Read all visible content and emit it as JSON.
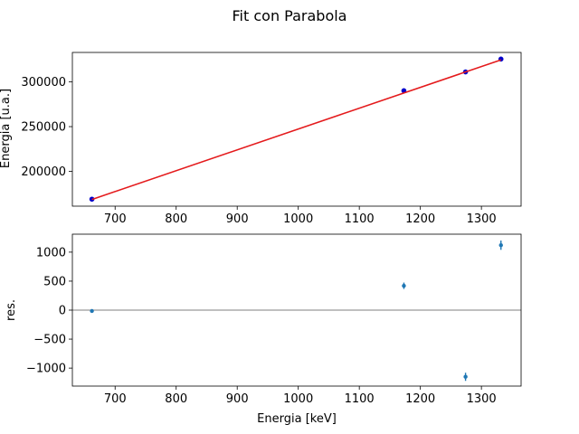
{
  "chart_data": [
    {
      "type": "line",
      "title": "Fit con Parabola",
      "xlabel": "",
      "ylabel": "Energia [u.a.]",
      "xlim": [
        630,
        1365
      ],
      "ylim": [
        161000,
        333000
      ],
      "xticks": [
        700,
        800,
        900,
        1000,
        1100,
        1200,
        1300
      ],
      "yticks": [
        200000,
        250000,
        300000
      ],
      "grid": false,
      "series": [
        {
          "kind": "scatter",
          "color": "#0000cc",
          "x": [
            662,
            1173,
            1274,
            1332
          ],
          "y": [
            168800,
            290200,
            311200,
            325600
          ]
        },
        {
          "kind": "line",
          "color": "#e41a1c",
          "x": [
            662,
            1332
          ],
          "y": [
            168500,
            324700
          ]
        }
      ]
    },
    {
      "type": "scatter",
      "xlabel": "Energia [keV]",
      "ylabel": "res.",
      "xlim": [
        630,
        1365
      ],
      "ylim": [
        -1310,
        1310
      ],
      "xticks": [
        700,
        800,
        900,
        1000,
        1100,
        1200,
        1300
      ],
      "yticks": [
        -1000,
        -500,
        0,
        500,
        1000
      ],
      "grid": false,
      "zero_line": true,
      "series": [
        {
          "kind": "errorbar",
          "color": "#1f77b4",
          "x": [
            662,
            1173,
            1274,
            1332
          ],
          "y": [
            -15,
            420,
            -1150,
            1120
          ],
          "yerr": [
            30,
            55,
            70,
            80
          ]
        }
      ]
    }
  ]
}
